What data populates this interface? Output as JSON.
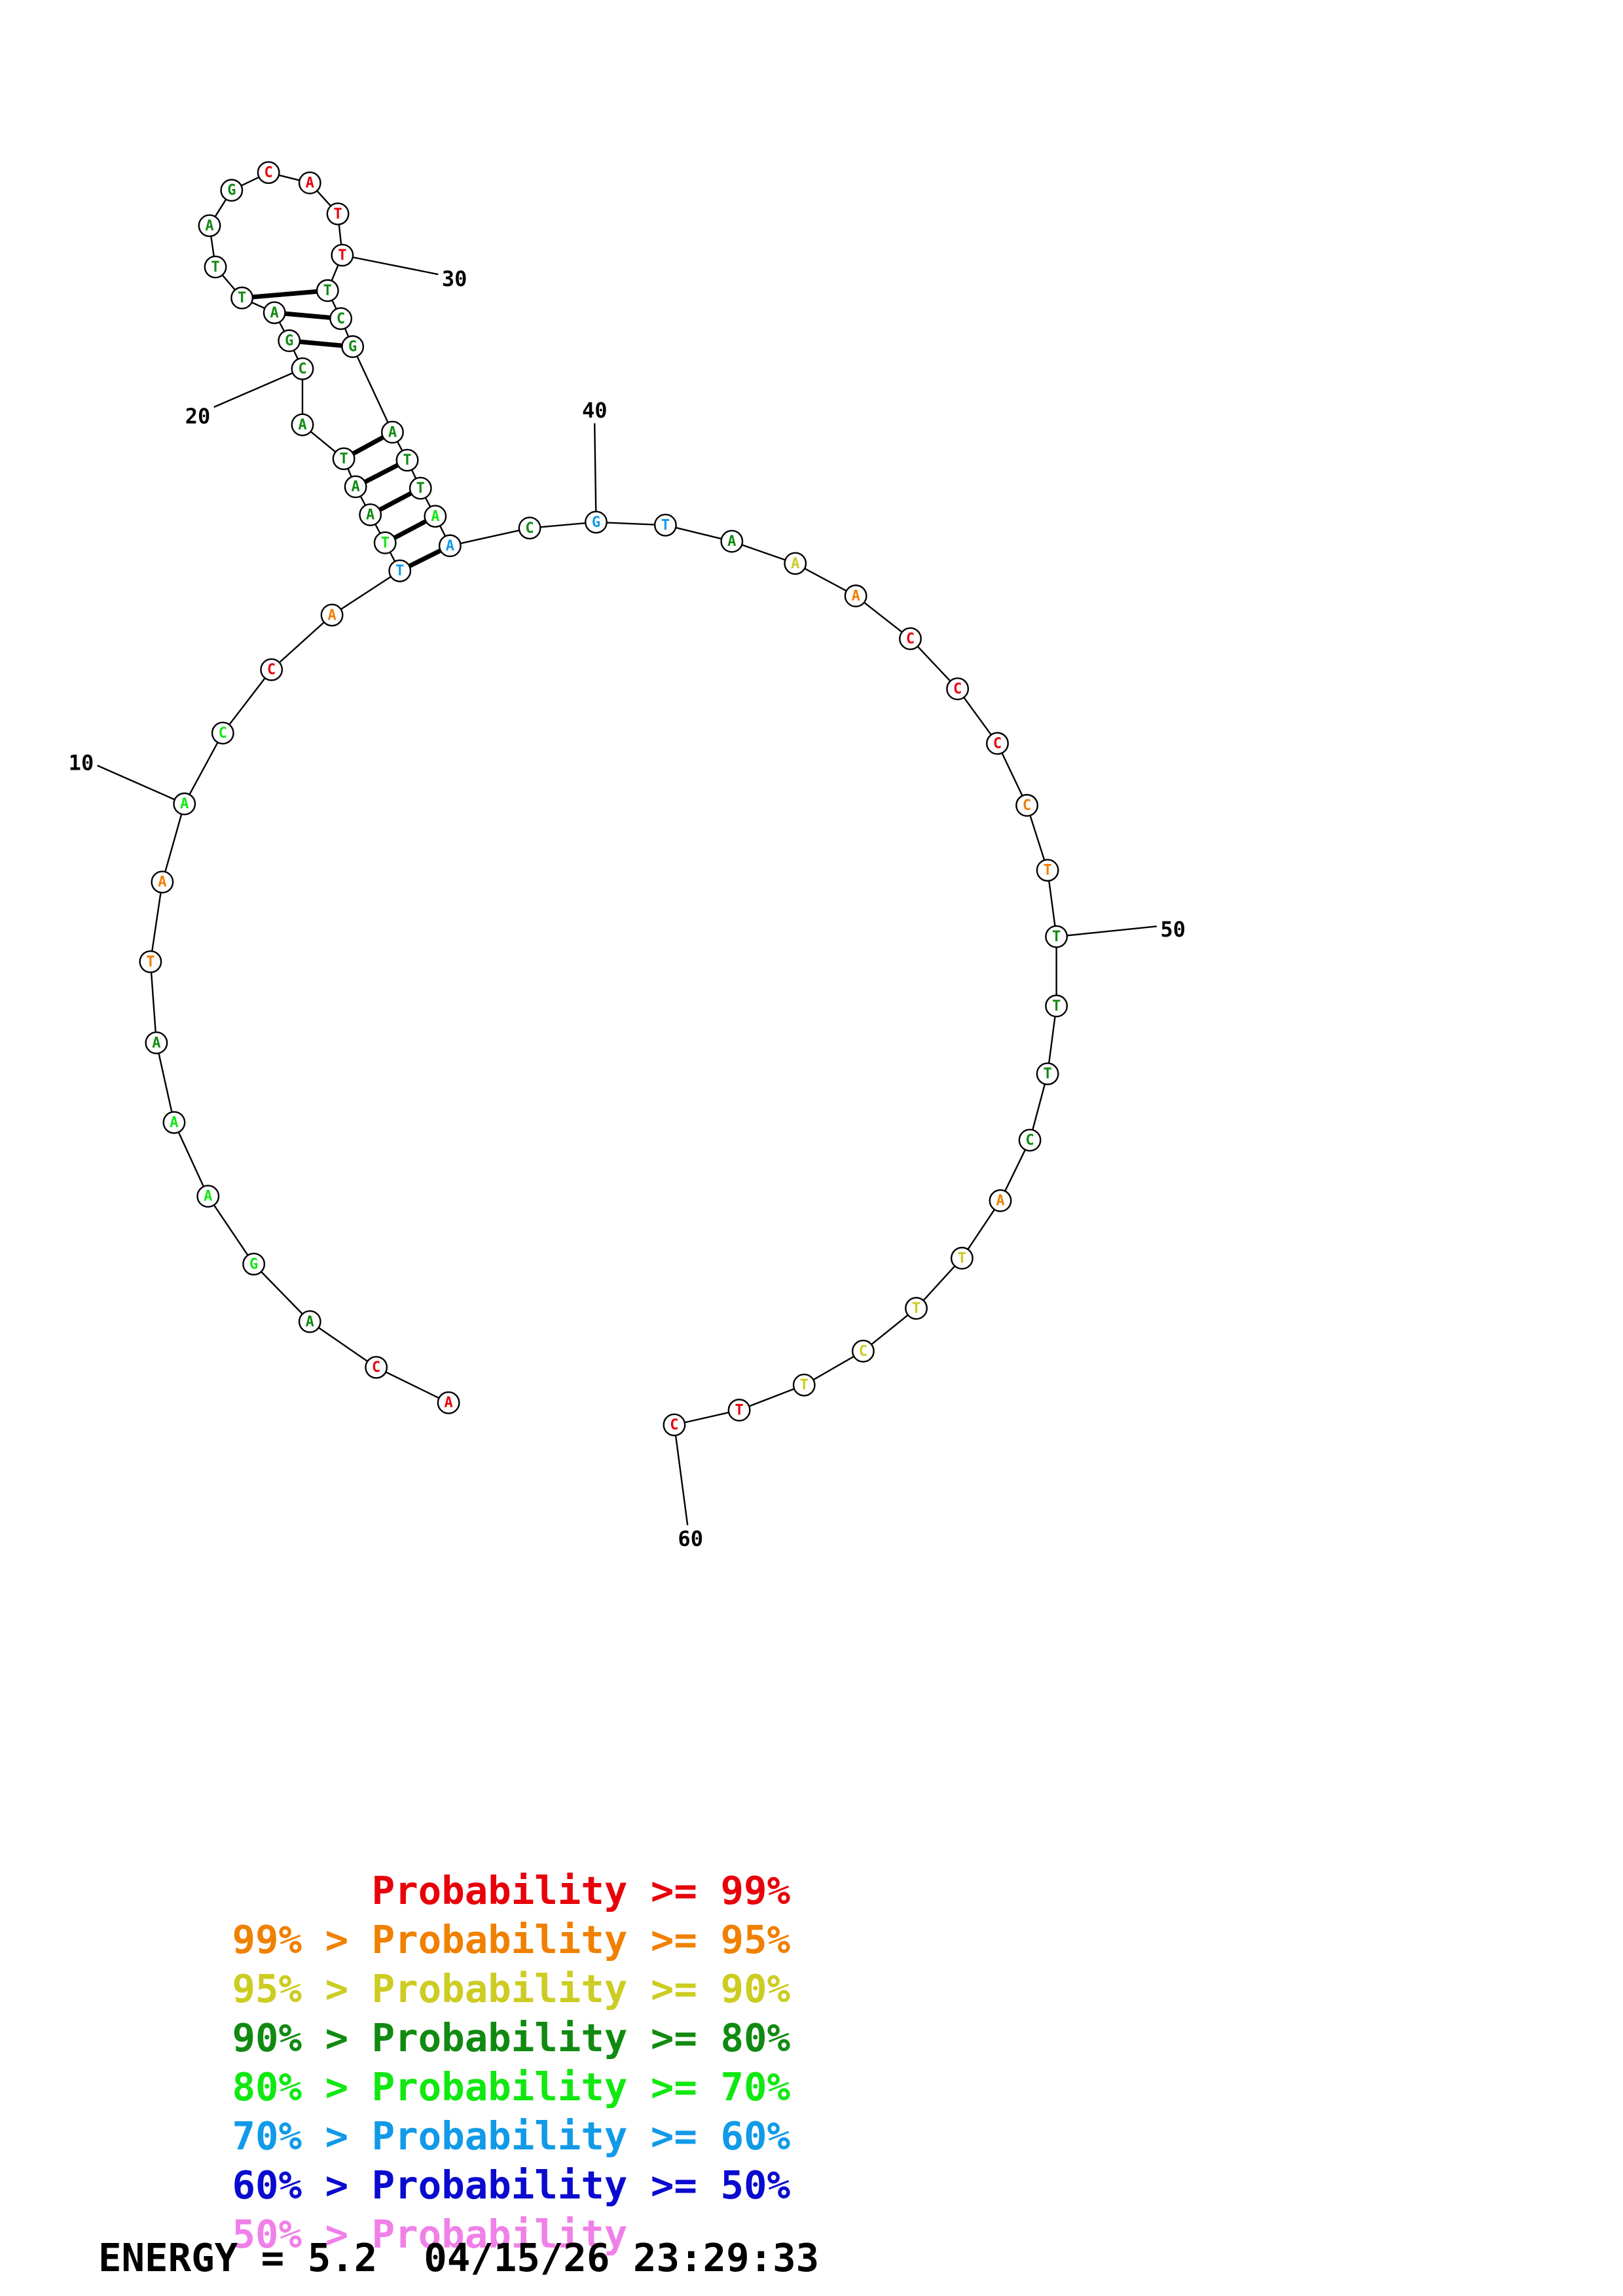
{
  "diagram": {
    "nucleotides": [
      {
        "n": 1,
        "base": "A",
        "color": "#e8000a"
      },
      {
        "n": 2,
        "base": "C",
        "color": "#e8000a"
      },
      {
        "n": 3,
        "base": "A",
        "color": "#118a11"
      },
      {
        "n": 4,
        "base": "G",
        "color": "#11e811"
      },
      {
        "n": 5,
        "base": "A",
        "color": "#11e811"
      },
      {
        "n": 6,
        "base": "A",
        "color": "#11e811"
      },
      {
        "n": 7,
        "base": "A",
        "color": "#118a11"
      },
      {
        "n": 8,
        "base": "T",
        "color": "#f08000"
      },
      {
        "n": 9,
        "base": "A",
        "color": "#f08000"
      },
      {
        "n": 10,
        "base": "A",
        "color": "#11e811"
      },
      {
        "n": 11,
        "base": "C",
        "color": "#11e811"
      },
      {
        "n": 12,
        "base": "C",
        "color": "#e8000a"
      },
      {
        "n": 13,
        "base": "A",
        "color": "#f08000"
      },
      {
        "n": 14,
        "base": "T",
        "color": "#119ae8"
      },
      {
        "n": 15,
        "base": "T",
        "color": "#11e811"
      },
      {
        "n": 16,
        "base": "A",
        "color": "#118a11"
      },
      {
        "n": 17,
        "base": "A",
        "color": "#118a11"
      },
      {
        "n": 18,
        "base": "T",
        "color": "#118a11"
      },
      {
        "n": 19,
        "base": "A",
        "color": "#118a11"
      },
      {
        "n": 20,
        "base": "C",
        "color": "#118a11"
      },
      {
        "n": 21,
        "base": "G",
        "color": "#118a11"
      },
      {
        "n": 22,
        "base": "A",
        "color": "#118a11"
      },
      {
        "n": 23,
        "base": "T",
        "color": "#118a11"
      },
      {
        "n": 24,
        "base": "T",
        "color": "#118a11"
      },
      {
        "n": 25,
        "base": "A",
        "color": "#118a11"
      },
      {
        "n": 26,
        "base": "G",
        "color": "#118a11"
      },
      {
        "n": 27,
        "base": "C",
        "color": "#e8000a"
      },
      {
        "n": 28,
        "base": "A",
        "color": "#e8000a"
      },
      {
        "n": 29,
        "base": "T",
        "color": "#e8000a"
      },
      {
        "n": 30,
        "base": "T",
        "color": "#e8000a"
      },
      {
        "n": 31,
        "base": "T",
        "color": "#118a11"
      },
      {
        "n": 32,
        "base": "C",
        "color": "#118a11"
      },
      {
        "n": 33,
        "base": "G",
        "color": "#118a11"
      },
      {
        "n": 34,
        "base": "A",
        "color": "#118a11"
      },
      {
        "n": 35,
        "base": "T",
        "color": "#118a11"
      },
      {
        "n": 36,
        "base": "T",
        "color": "#118a11"
      },
      {
        "n": 37,
        "base": "A",
        "color": "#11e811"
      },
      {
        "n": 38,
        "base": "A",
        "color": "#119ae8"
      },
      {
        "n": 39,
        "base": "C",
        "color": "#118a11"
      },
      {
        "n": 40,
        "base": "G",
        "color": "#119ae8"
      },
      {
        "n": 41,
        "base": "T",
        "color": "#119ae8"
      },
      {
        "n": 42,
        "base": "A",
        "color": "#118a11"
      },
      {
        "n": 43,
        "base": "A",
        "color": "#cccc22"
      },
      {
        "n": 44,
        "base": "A",
        "color": "#f08000"
      },
      {
        "n": 45,
        "base": "C",
        "color": "#e8000a"
      },
      {
        "n": 46,
        "base": "C",
        "color": "#e8000a"
      },
      {
        "n": 47,
        "base": "C",
        "color": "#e8000a"
      },
      {
        "n": 48,
        "base": "C",
        "color": "#f08000"
      },
      {
        "n": 49,
        "base": "T",
        "color": "#f08000"
      },
      {
        "n": 50,
        "base": "T",
        "color": "#118a11"
      },
      {
        "n": 51,
        "base": "T",
        "color": "#118a11"
      },
      {
        "n": 52,
        "base": "T",
        "color": "#118a11"
      },
      {
        "n": 53,
        "base": "C",
        "color": "#118a11"
      },
      {
        "n": 54,
        "base": "A",
        "color": "#f08000"
      },
      {
        "n": 55,
        "base": "T",
        "color": "#cccc22"
      },
      {
        "n": 56,
        "base": "T",
        "color": "#cccc22"
      },
      {
        "n": 57,
        "base": "C",
        "color": "#cccc22"
      },
      {
        "n": 58,
        "base": "T",
        "color": "#cccc22"
      },
      {
        "n": 59,
        "base": "T",
        "color": "#e8000a"
      },
      {
        "n": 60,
        "base": "C",
        "color": "#e8000a"
      }
    ],
    "pairs": [
      [
        14,
        38
      ],
      [
        15,
        37
      ],
      [
        16,
        36
      ],
      [
        17,
        35
      ],
      [
        18,
        34
      ],
      [
        21,
        33
      ],
      [
        22,
        32
      ],
      [
        23,
        31
      ]
    ],
    "tick_labels": [
      {
        "n": 10,
        "label": "10"
      },
      {
        "n": 20,
        "label": "20"
      },
      {
        "n": 30,
        "label": "30"
      },
      {
        "n": 40,
        "label": "40"
      },
      {
        "n": 50,
        "label": "50"
      },
      {
        "n": 60,
        "label": "60"
      }
    ]
  },
  "legend": [
    {
      "left": "",
      "right": "Probability >= 99%",
      "color": "#e8000a"
    },
    {
      "left": "99% >",
      "right": "Probability >= 95%",
      "color": "#f08000"
    },
    {
      "left": "95% >",
      "right": "Probability >= 90%",
      "color": "#cccc22"
    },
    {
      "left": "90% >",
      "right": "Probability >= 80%",
      "color": "#118a11"
    },
    {
      "left": "80% >",
      "right": "Probability >= 70%",
      "color": "#11e811"
    },
    {
      "left": "70% >",
      "right": "Probability >= 60%",
      "color": "#119ae8"
    },
    {
      "left": "60% >",
      "right": "Probability >= 50%",
      "color": "#0a0ad0"
    },
    {
      "left": "50% >",
      "right": "Probability",
      "color": "#f080e8"
    }
  ],
  "footer": {
    "energy_text": "ENERGY = 5.2  04/15/26 23:29:33"
  }
}
